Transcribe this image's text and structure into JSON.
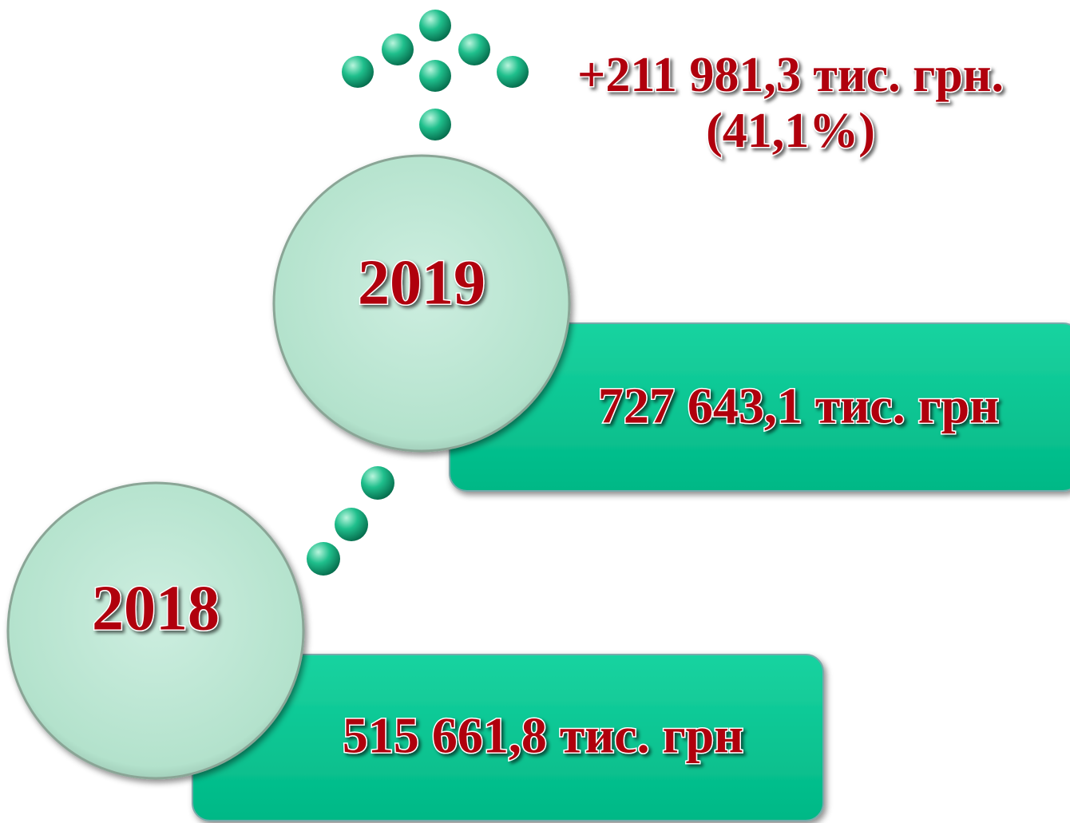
{
  "change": {
    "amount": "+211 981,3 тис. грн.",
    "percent": "(41,1%)"
  },
  "years": [
    {
      "year": "2019",
      "amount": "727 643,1 тис. грн"
    },
    {
      "year": "2018",
      "amount": "515 661,8 тис. грн"
    }
  ]
}
